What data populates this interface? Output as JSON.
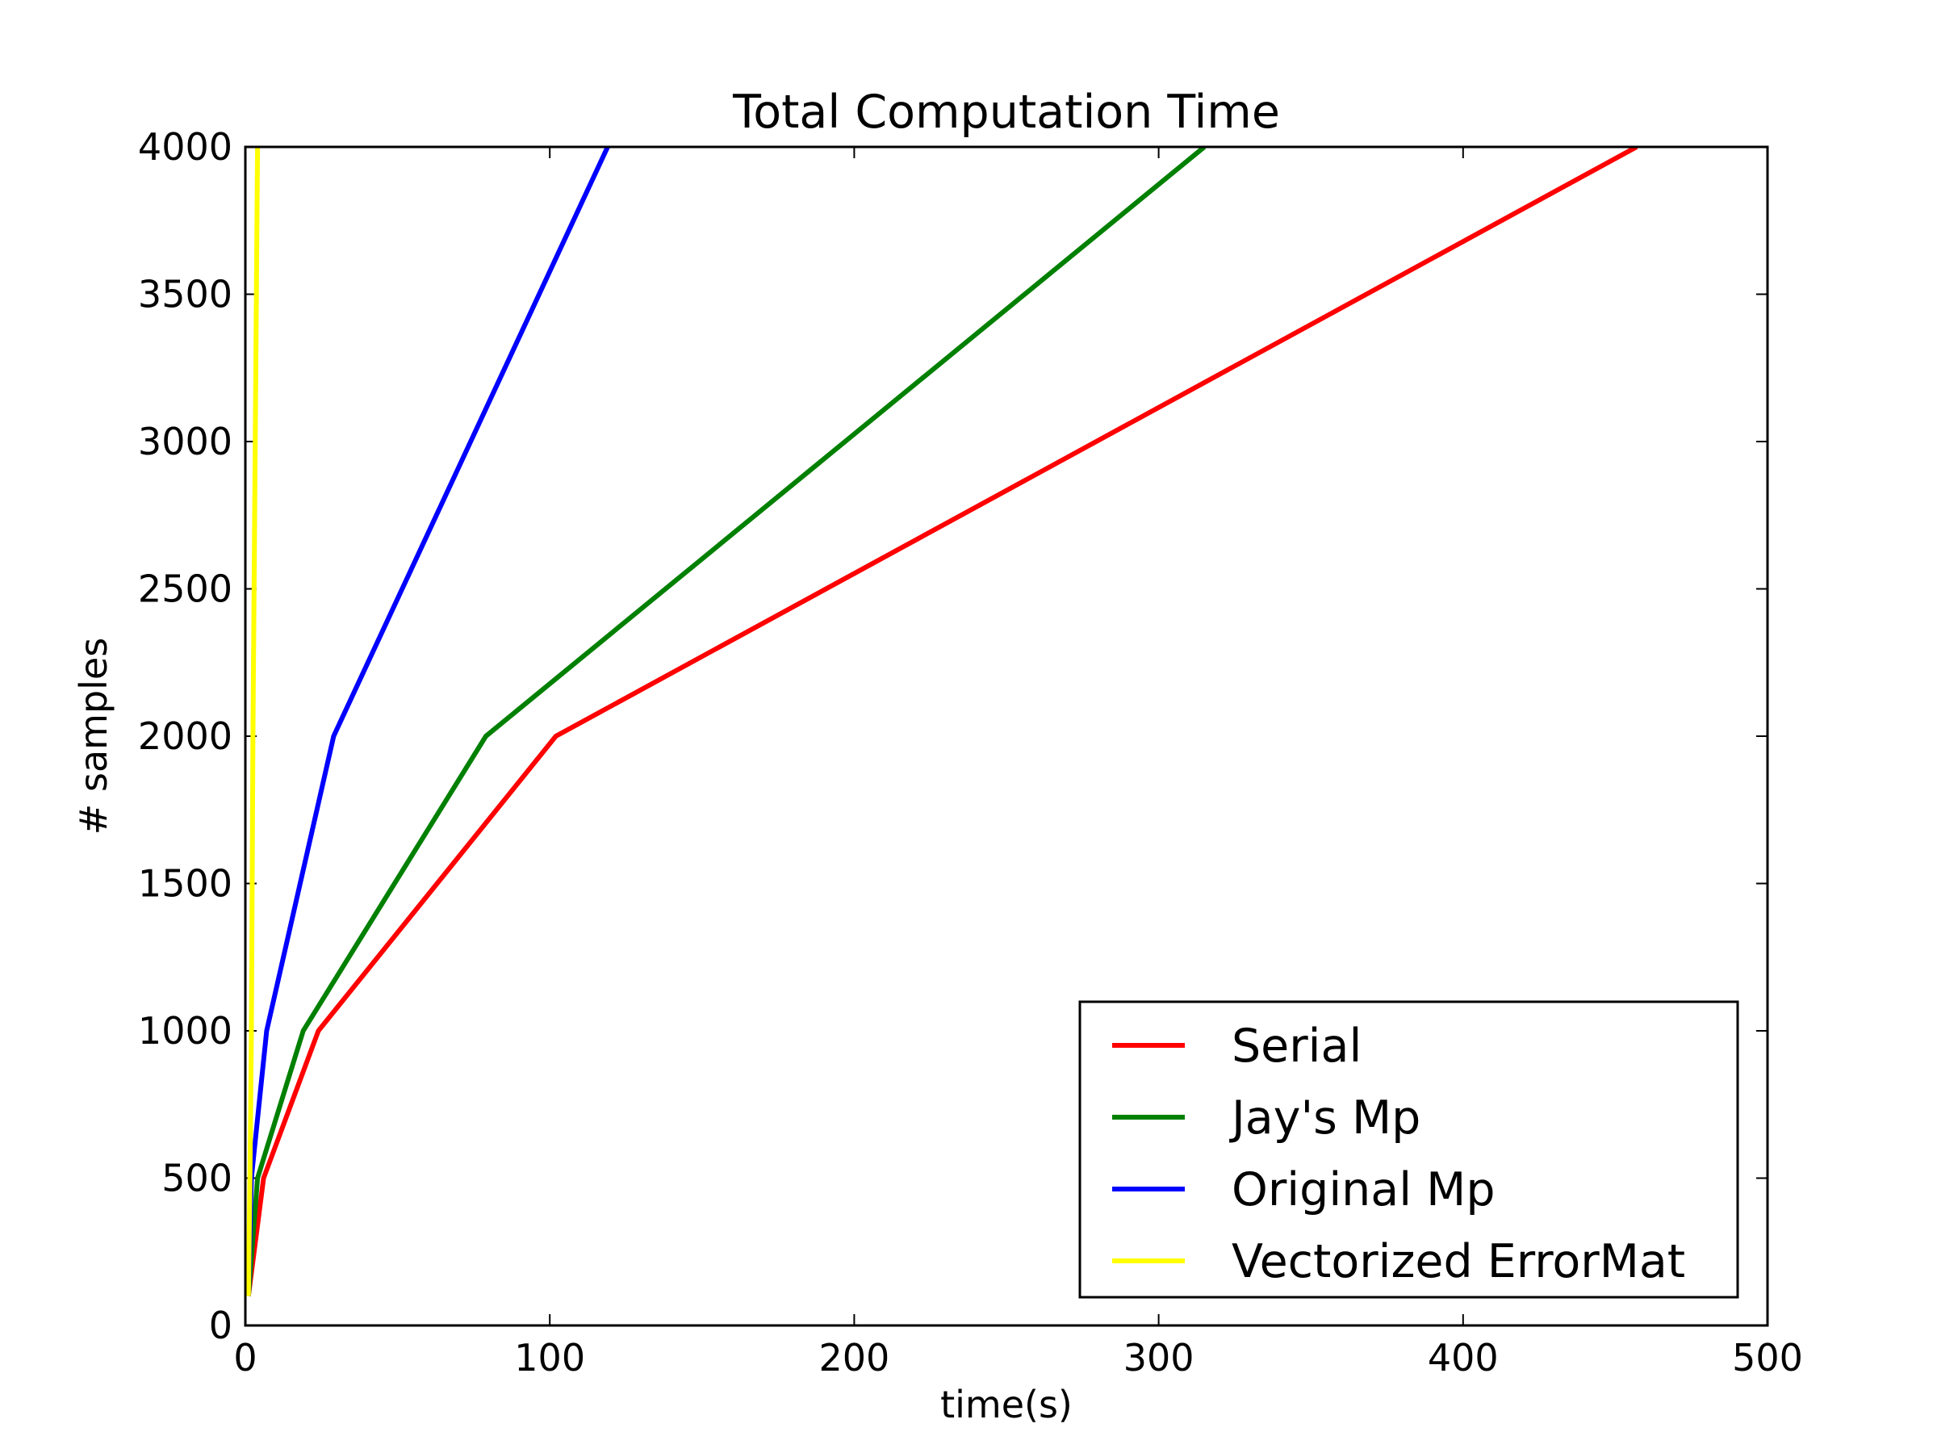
{
  "chart_data": {
    "type": "line",
    "title": "Total Computation Time",
    "xlabel": "time(s)",
    "ylabel": "# samples",
    "xlim": [
      0,
      500
    ],
    "ylim": [
      0,
      4000
    ],
    "xticks": [
      0,
      100,
      200,
      300,
      400,
      500
    ],
    "yticks": [
      0,
      500,
      1000,
      1500,
      2000,
      2500,
      3000,
      3500,
      4000
    ],
    "grid": false,
    "legend_position": "lower-right",
    "series": [
      {
        "name": "Serial",
        "color": "#ff0000",
        "points": [
          [
            1,
            100
          ],
          [
            6,
            500
          ],
          [
            24,
            1000
          ],
          [
            102,
            2000
          ],
          [
            457,
            4000
          ]
        ]
      },
      {
        "name": "Jay's Mp",
        "color": "#008000",
        "points": [
          [
            1,
            100
          ],
          [
            4,
            500
          ],
          [
            19,
            1000
          ],
          [
            79,
            2000
          ],
          [
            315,
            4000
          ]
        ]
      },
      {
        "name": "Original Mp",
        "color": "#0000ff",
        "points": [
          [
            1,
            100
          ],
          [
            2,
            500
          ],
          [
            7,
            1000
          ],
          [
            29,
            2000
          ],
          [
            119,
            4000
          ]
        ]
      },
      {
        "name": "Vectorized ErrorMat",
        "color": "#ffff00",
        "points": [
          [
            1,
            100
          ],
          [
            1.5,
            500
          ],
          [
            2,
            1000
          ],
          [
            2.5,
            2000
          ],
          [
            4,
            4000
          ]
        ]
      }
    ]
  }
}
